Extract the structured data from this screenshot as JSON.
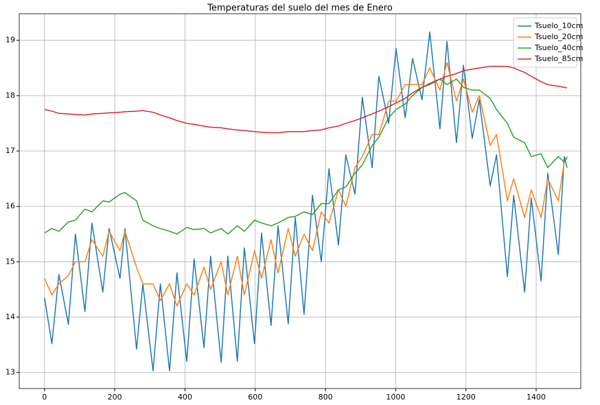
{
  "chart_data": {
    "type": "line",
    "title": "Temperaturas del suelo del mes de Enero",
    "x": [
      0,
      21,
      41,
      68,
      88,
      115,
      135,
      166,
      184,
      215,
      229,
      262,
      280,
      309,
      330,
      356,
      377,
      405,
      426,
      454,
      473,
      503,
      522,
      549,
      569,
      598,
      618,
      645,
      665,
      694,
      714,
      739,
      763,
      788,
      810,
      837,
      858,
      884,
      905,
      933,
      952,
      980,
      1001,
      1027,
      1048,
      1075,
      1097,
      1126,
      1146,
      1173,
      1193,
      1218,
      1238,
      1269,
      1287,
      1318,
      1336,
      1367,
      1386,
      1414,
      1433,
      1463,
      1480,
      1488
    ],
    "series": [
      {
        "name": "Tsuelo_10cm",
        "color": "#1f77b4",
        "values": [
          14.35,
          13.52,
          14.77,
          13.87,
          15.5,
          14.1,
          15.7,
          14.45,
          15.6,
          14.7,
          15.6,
          13.42,
          14.6,
          13.03,
          14.6,
          13.03,
          14.8,
          13.2,
          15.05,
          13.45,
          15.1,
          13.18,
          15.1,
          13.2,
          15.25,
          13.52,
          15.52,
          13.85,
          15.65,
          13.88,
          15.8,
          14.05,
          16.2,
          15.0,
          16.68,
          15.3,
          16.93,
          16.22,
          17.97,
          16.7,
          18.35,
          17.5,
          18.85,
          17.6,
          18.67,
          17.93,
          19.15,
          17.4,
          18.98,
          17.15,
          18.55,
          17.23,
          17.93,
          16.37,
          16.93,
          14.73,
          16.2,
          14.45,
          16.15,
          14.65,
          16.6,
          15.13,
          16.9,
          16.7
        ]
      },
      {
        "name": "Tsuelo_20cm",
        "color": "#ff7f0e",
        "values": [
          14.7,
          14.4,
          14.6,
          14.75,
          15.0,
          15.0,
          15.4,
          15.1,
          15.55,
          15.2,
          15.55,
          14.9,
          14.6,
          14.6,
          14.3,
          14.6,
          14.2,
          14.6,
          14.4,
          14.9,
          14.5,
          15.0,
          14.4,
          15.1,
          14.4,
          15.2,
          14.7,
          15.4,
          14.8,
          15.6,
          15.1,
          15.5,
          15.2,
          15.9,
          15.7,
          16.3,
          16.0,
          16.7,
          16.9,
          17.3,
          17.3,
          17.9,
          17.9,
          18.2,
          18.2,
          18.2,
          18.5,
          18.1,
          18.6,
          17.9,
          18.3,
          17.7,
          18.0,
          17.1,
          17.3,
          16.1,
          16.5,
          15.8,
          16.3,
          15.8,
          16.5,
          16.1,
          16.8,
          16.9
        ]
      },
      {
        "name": "Tsuelo_40cm",
        "color": "#2ca02c",
        "values": [
          15.52,
          15.6,
          15.55,
          15.72,
          15.75,
          15.95,
          15.9,
          16.1,
          16.08,
          16.22,
          16.25,
          16.1,
          15.75,
          15.65,
          15.6,
          15.55,
          15.5,
          15.62,
          15.58,
          15.6,
          15.52,
          15.6,
          15.5,
          15.65,
          15.55,
          15.75,
          15.7,
          15.65,
          15.7,
          15.8,
          15.82,
          15.9,
          15.85,
          16.05,
          16.05,
          16.3,
          16.35,
          16.6,
          16.75,
          17.1,
          17.25,
          17.6,
          17.75,
          17.85,
          18.0,
          18.15,
          18.2,
          18.3,
          18.2,
          18.3,
          18.15,
          18.1,
          18.1,
          17.95,
          17.75,
          17.5,
          17.25,
          17.15,
          16.9,
          16.95,
          16.7,
          16.9,
          16.8,
          16.88
        ]
      },
      {
        "name": "Tsuelo_85cm",
        "color": "#d62728",
        "values": [
          17.75,
          17.72,
          17.68,
          17.67,
          17.66,
          17.65,
          17.67,
          17.68,
          17.69,
          17.7,
          17.71,
          17.72,
          17.73,
          17.7,
          17.65,
          17.6,
          17.55,
          17.5,
          17.48,
          17.45,
          17.43,
          17.42,
          17.4,
          17.38,
          17.37,
          17.35,
          17.34,
          17.33,
          17.33,
          17.35,
          17.35,
          17.35,
          17.37,
          17.38,
          17.42,
          17.45,
          17.5,
          17.55,
          17.6,
          17.67,
          17.72,
          17.8,
          17.87,
          17.95,
          18.05,
          18.15,
          18.22,
          18.3,
          18.35,
          18.4,
          18.45,
          18.48,
          18.5,
          18.53,
          18.53,
          18.53,
          18.5,
          18.42,
          18.35,
          18.25,
          18.2,
          18.17,
          18.15,
          18.14
        ]
      }
    ],
    "xlim": [
      -72,
      1527
    ],
    "ylim": [
      12.71,
      19.48
    ],
    "xticks": [
      0,
      200,
      400,
      600,
      800,
      1000,
      1200,
      1400
    ],
    "yticks": [
      13,
      14,
      15,
      16,
      17,
      18,
      19
    ],
    "grid": true,
    "legend": "upper right"
  }
}
